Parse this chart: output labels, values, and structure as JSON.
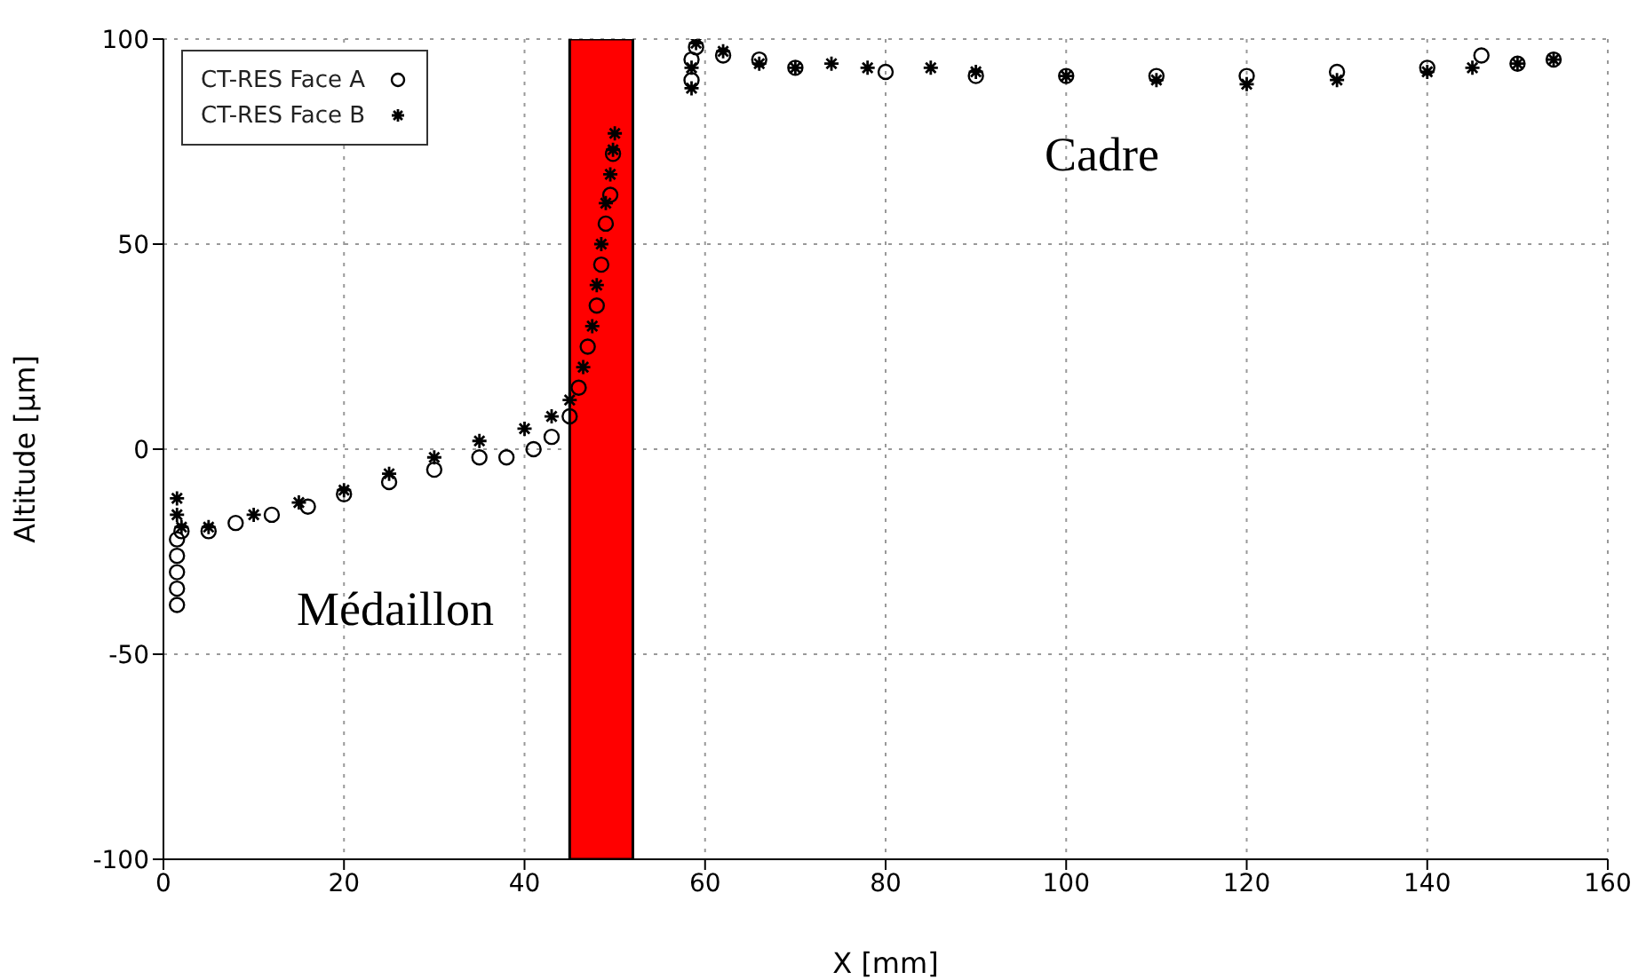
{
  "chart_data": {
    "type": "scatter",
    "xlabel": "X [mm]",
    "ylabel": "Altitude [µm]",
    "xlim": [
      0,
      160
    ],
    "xticks": [
      0,
      20,
      40,
      60,
      80,
      100,
      120,
      140,
      160
    ],
    "ylim": [
      -100,
      100
    ],
    "yticks": [
      -100,
      -50,
      0,
      50,
      100
    ],
    "grid": true,
    "legend": "top left",
    "series": [
      {
        "name": "CT-RES Face A",
        "color": "#000000",
        "marker": "circle",
        "x": [
          1.5,
          1.5,
          1.5,
          1.5,
          1.5,
          2,
          5,
          8,
          12,
          16,
          20,
          25,
          30,
          35,
          38,
          41,
          43,
          45,
          46,
          47,
          48,
          48.5,
          49,
          49.5,
          49.8,
          58.5,
          58.5,
          59,
          62,
          66,
          70,
          80,
          90,
          100,
          110,
          120,
          130,
          140,
          146,
          150,
          154
        ],
        "values": [
          -38,
          -34,
          -30,
          -26,
          -22,
          -20,
          -20,
          -18,
          -16,
          -14,
          -11,
          -8,
          -5,
          -2,
          -2,
          0,
          3,
          8,
          15,
          25,
          35,
          45,
          55,
          62,
          72,
          90,
          95,
          98,
          96,
          95,
          93,
          92,
          91,
          91,
          91,
          91,
          92,
          93,
          96,
          94,
          95
        ]
      },
      {
        "name": "CT-RES Face B",
        "color": "#000000",
        "marker": "cross",
        "x": [
          1.5,
          1.5,
          2,
          5,
          10,
          15,
          20,
          25,
          30,
          35,
          40,
          43,
          45,
          46.5,
          47.5,
          48,
          48.5,
          49,
          49.5,
          49.8,
          50,
          58.5,
          58.5,
          59,
          62,
          66,
          70,
          74,
          78,
          85,
          90,
          100,
          110,
          120,
          130,
          140,
          145,
          150,
          154
        ],
        "values": [
          -12,
          -16,
          -19,
          -19,
          -16,
          -13,
          -10,
          -6,
          -2,
          2,
          5,
          8,
          12,
          20,
          30,
          40,
          50,
          60,
          67,
          73,
          77,
          88,
          93,
          99,
          97,
          94,
          93,
          94,
          93,
          93,
          92,
          91,
          90,
          89,
          90,
          92,
          93,
          94,
          95
        ]
      }
    ],
    "bands": [
      {
        "axis": "x",
        "from": 45,
        "to": 52,
        "color": "#ff0000"
      }
    ],
    "annotations": [
      "Médaillon",
      "Cadre"
    ]
  }
}
